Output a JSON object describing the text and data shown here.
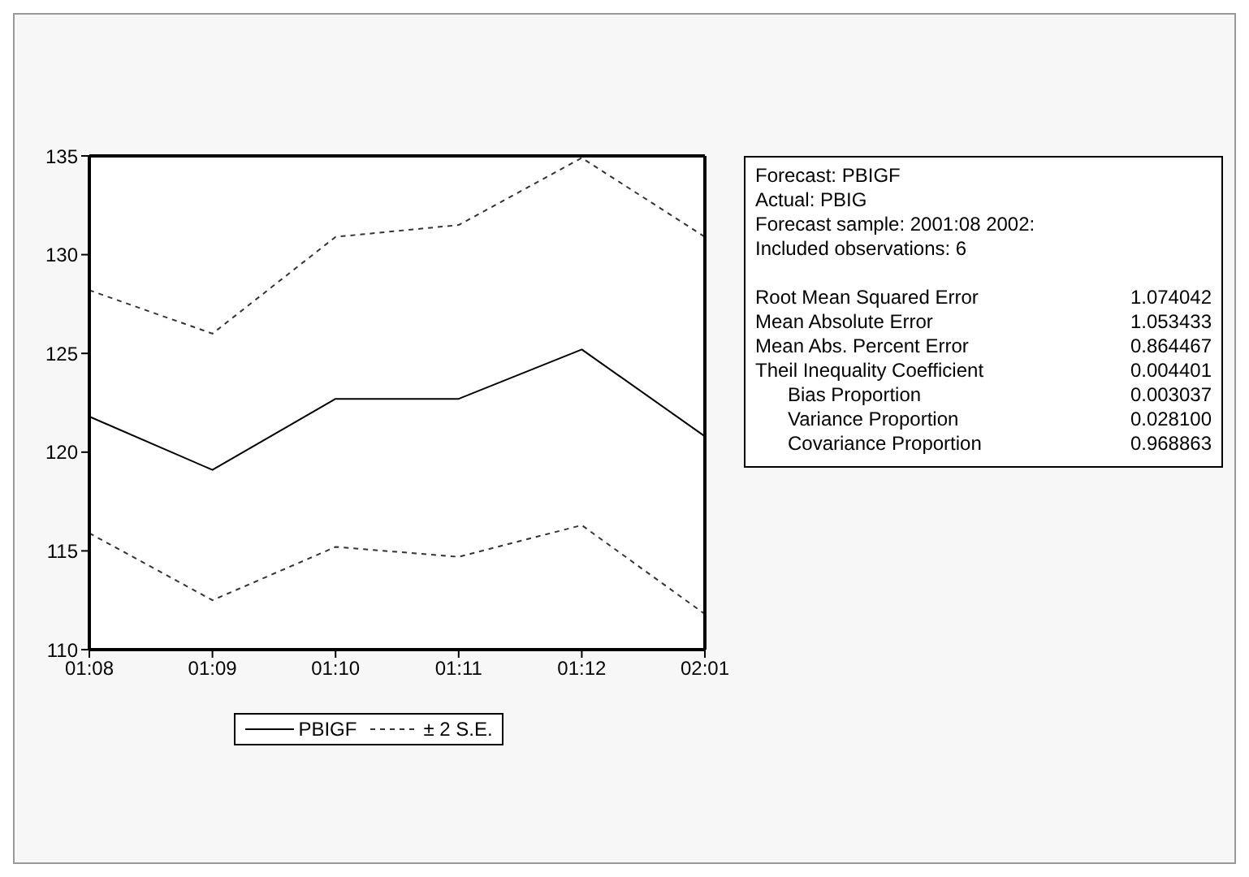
{
  "chart_data": {
    "type": "line",
    "categories": [
      "01:08",
      "01:09",
      "01:10",
      "01:11",
      "01:12",
      "02:01"
    ],
    "series": [
      {
        "name": "PBIGF",
        "color": "#000000",
        "line_style": "solid",
        "values": [
          121.8,
          119.1,
          122.7,
          122.7,
          125.2,
          120.8
        ]
      },
      {
        "name": "± 2 S.E.",
        "color": "#333333",
        "line_style": "dashed",
        "values": [
          128.2,
          126.0,
          130.9,
          131.5,
          134.9,
          130.9
        ]
      },
      {
        "color": "#333333",
        "line_style": "dashed",
        "values": [
          115.9,
          112.5,
          115.2,
          114.7,
          116.3,
          111.8
        ]
      }
    ],
    "ylim": [
      110,
      135
    ],
    "yticks": [
      110,
      115,
      120,
      125,
      130,
      135
    ],
    "legend": "bottom",
    "marker": "none",
    "annotations": [
      "Forecast: PBIGF",
      "Actual: PBIG",
      "Forecast sample: 2001:08 2002:",
      "Included observations: 6",
      "Root Mean Squared Error\t1.074042",
      "Mean Absolute Error\t1.053433",
      "Mean Abs. Percent Error\t0.864467",
      "Theil Inequality Coefficient\t0.004401",
      "      Bias Proportion\t0.003037",
      "      Variance Proportion\t0.028100",
      "      Covariance Proportion\t0.968863"
    ]
  }
}
